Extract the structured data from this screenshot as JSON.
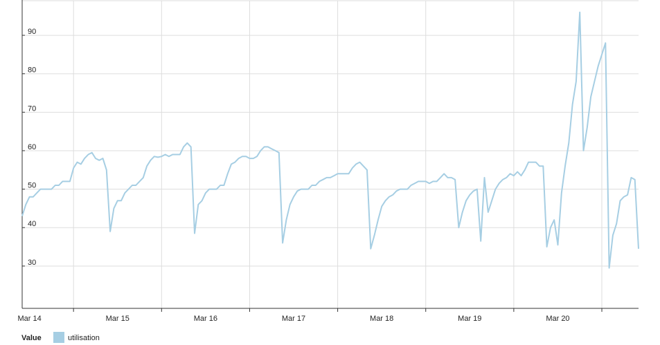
{
  "chart_data": {
    "type": "line",
    "legend_title": "Value",
    "series": [
      {
        "name": "utilisation",
        "color": "#a6cee3",
        "values": [
          43,
          46,
          48,
          48,
          49,
          50,
          50,
          50,
          50,
          51,
          51,
          52,
          52,
          52,
          55.5,
          57,
          56.5,
          58,
          59,
          59.5,
          58,
          57.5,
          58,
          55,
          39,
          45,
          47,
          47,
          49,
          50,
          51,
          51,
          52,
          53,
          56,
          57.5,
          58.5,
          58.3,
          58.5,
          59,
          58.5,
          59,
          59,
          59,
          61,
          62,
          61,
          38.5,
          46,
          47,
          49,
          50,
          50,
          50,
          51,
          51,
          54,
          56.5,
          57,
          58,
          58.5,
          58.5,
          58,
          58,
          58.5,
          60,
          61,
          61,
          60.5,
          60,
          59.5,
          36,
          42,
          46,
          48,
          49.5,
          50,
          50,
          50,
          51,
          51,
          52,
          52.5,
          53,
          53,
          53.5,
          54,
          54,
          54,
          54,
          55.5,
          56.5,
          57,
          56,
          55,
          34.5,
          38,
          42,
          45.5,
          47,
          48,
          48.5,
          49.5,
          50,
          50,
          50,
          51,
          51.5,
          52,
          52,
          52,
          51.5,
          52,
          52,
          53,
          54,
          53,
          53,
          52.5,
          40,
          44,
          47,
          48.5,
          49.5,
          50,
          36.5,
          53,
          44,
          47,
          50,
          51.5,
          52.5,
          53,
          54,
          53.5,
          54.5,
          53.5,
          55,
          57,
          57,
          57,
          56,
          56,
          35,
          40,
          42,
          35.5,
          49,
          56,
          62,
          72,
          78,
          96,
          60,
          66,
          74,
          78,
          82,
          85,
          88,
          29.5,
          38,
          41,
          47,
          48,
          48.5,
          53,
          52.5,
          34.5
        ]
      }
    ],
    "xlim": [
      0,
      168
    ],
    "xticks": [
      {
        "value": 2,
        "label": "Mar 14"
      },
      {
        "value": 26,
        "label": "Mar 15"
      },
      {
        "value": 50,
        "label": "Mar 16"
      },
      {
        "value": 74,
        "label": "Mar 17"
      },
      {
        "value": 98,
        "label": "Mar 18"
      },
      {
        "value": 122,
        "label": "Mar 19"
      },
      {
        "value": 146,
        "label": "Mar 20"
      }
    ],
    "xgrid": [
      14,
      38,
      62,
      86,
      110,
      134,
      158
    ],
    "ylim": [
      19,
      99
    ],
    "yticks": [
      30,
      40,
      50,
      60,
      70,
      80,
      90
    ],
    "grid": true
  }
}
